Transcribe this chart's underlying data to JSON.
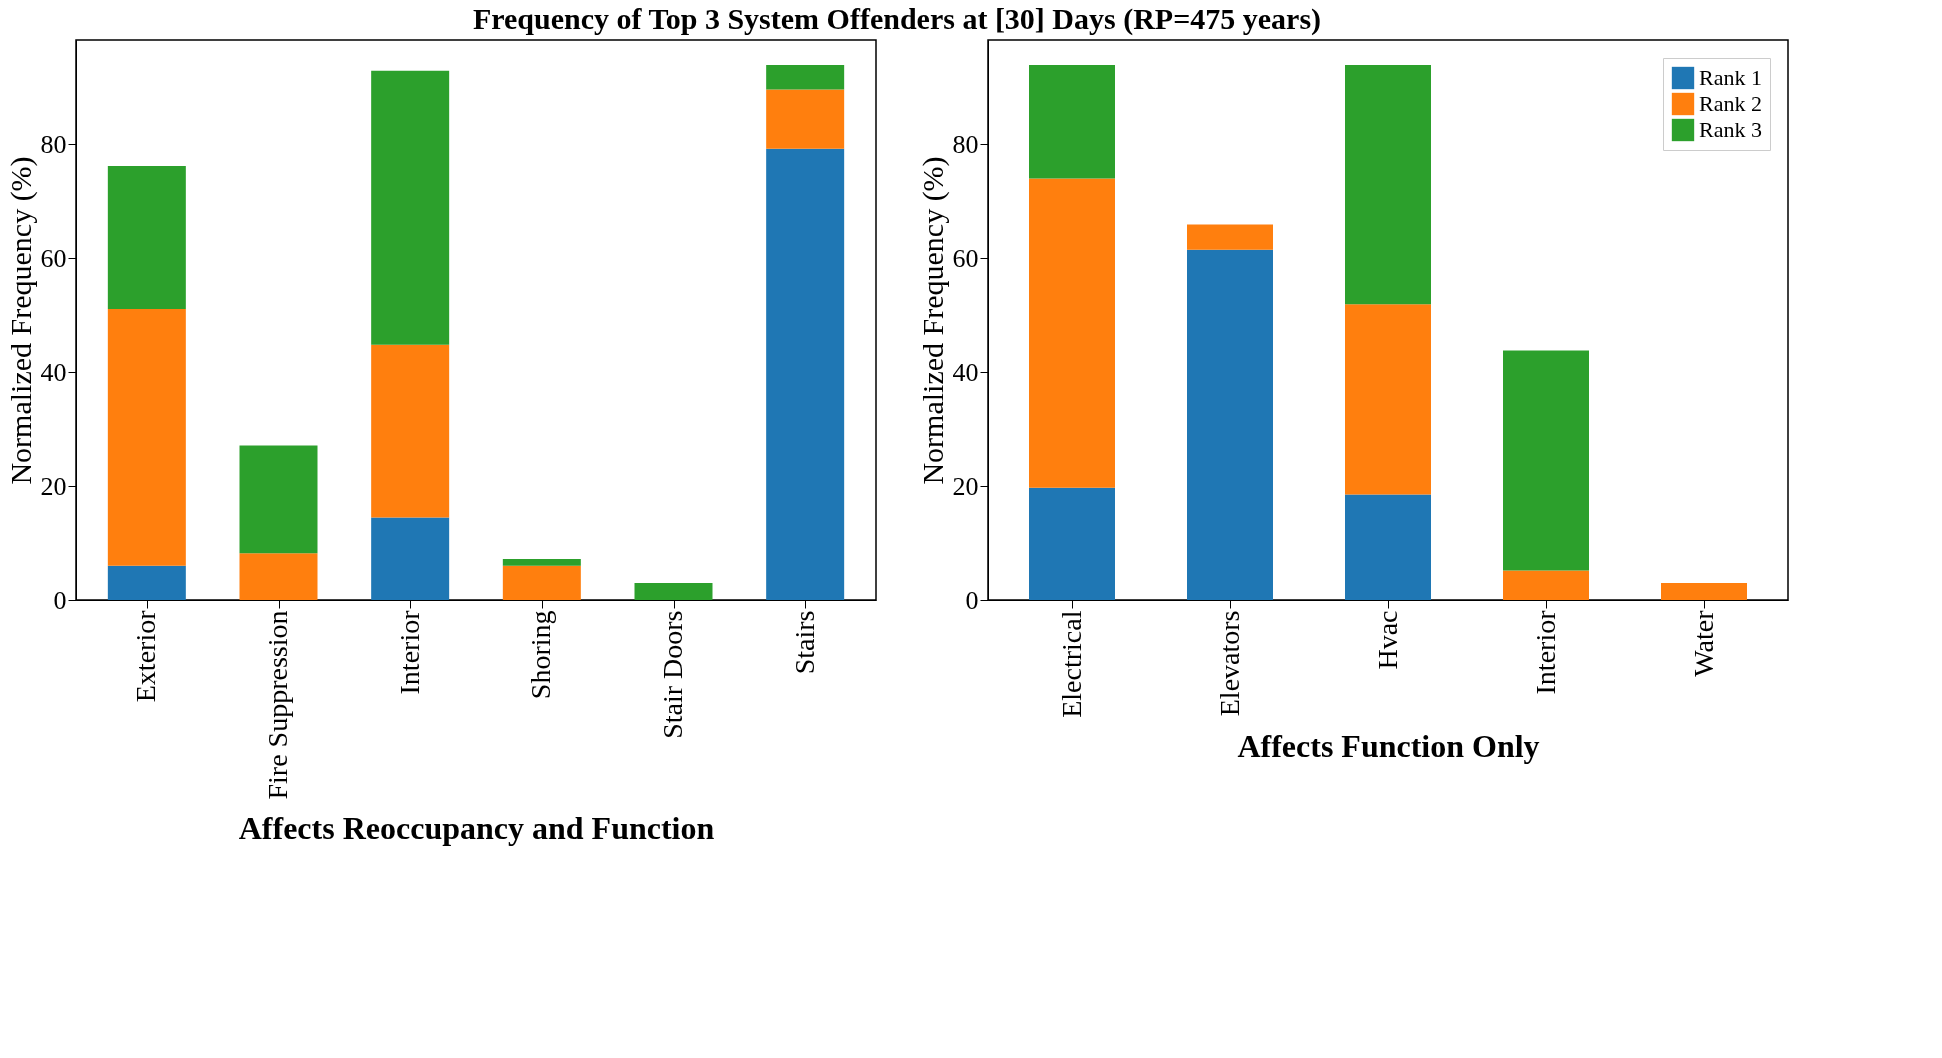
{
  "chart_data": [
    {
      "type": "bar",
      "title": "Frequency of Top 3 System Offenders at [30] Days (RP=475 years)",
      "stacked": true,
      "categories": [
        "Exterior",
        "Fire Suppression",
        "Interior",
        "Shoring",
        "Stair Doors",
        "Stairs"
      ],
      "xlabel": "Affects Reoccupancy and Function",
      "ylabel": "Normalized Frequency (%)",
      "ylim": [
        0,
        98.3
      ],
      "yticks": [
        0,
        20,
        40,
        60,
        80
      ],
      "grid": false,
      "legend": false,
      "series": [
        {
          "color": "#1f77b4",
          "values": [
            6.0,
            0,
            14.5,
            0,
            0,
            79.2
          ]
        },
        {
          "color": "#ff7f0e",
          "values": [
            45.1,
            8.2,
            30.3,
            6.0,
            0,
            10.4
          ]
        },
        {
          "color": "#2ca02c",
          "values": [
            25.1,
            18.9,
            48.1,
            1.2,
            3.0,
            4.3
          ]
        }
      ]
    },
    {
      "type": "bar",
      "stacked": true,
      "categories": [
        "Electrical",
        "Elevators",
        "Hvac",
        "Interior",
        "Water"
      ],
      "xlabel": "Affects Function Only",
      "ylabel": "Normalized Frequency (%)",
      "ylim": [
        0,
        98.3
      ],
      "yticks": [
        0,
        20,
        40,
        60,
        80
      ],
      "grid": false,
      "legend": "top right",
      "series": [
        {
          "name": "Rank 1",
          "color": "#1f77b4",
          "values": [
            19.7,
            61.5,
            18.5,
            0,
            0
          ]
        },
        {
          "name": "Rank 2",
          "color": "#ff7f0e",
          "values": [
            54.3,
            4.4,
            33.4,
            5.2,
            3.0
          ]
        },
        {
          "name": "Rank 3",
          "color": "#2ca02c",
          "values": [
            19.9,
            0,
            42.0,
            38.6,
            0
          ]
        }
      ]
    }
  ]
}
